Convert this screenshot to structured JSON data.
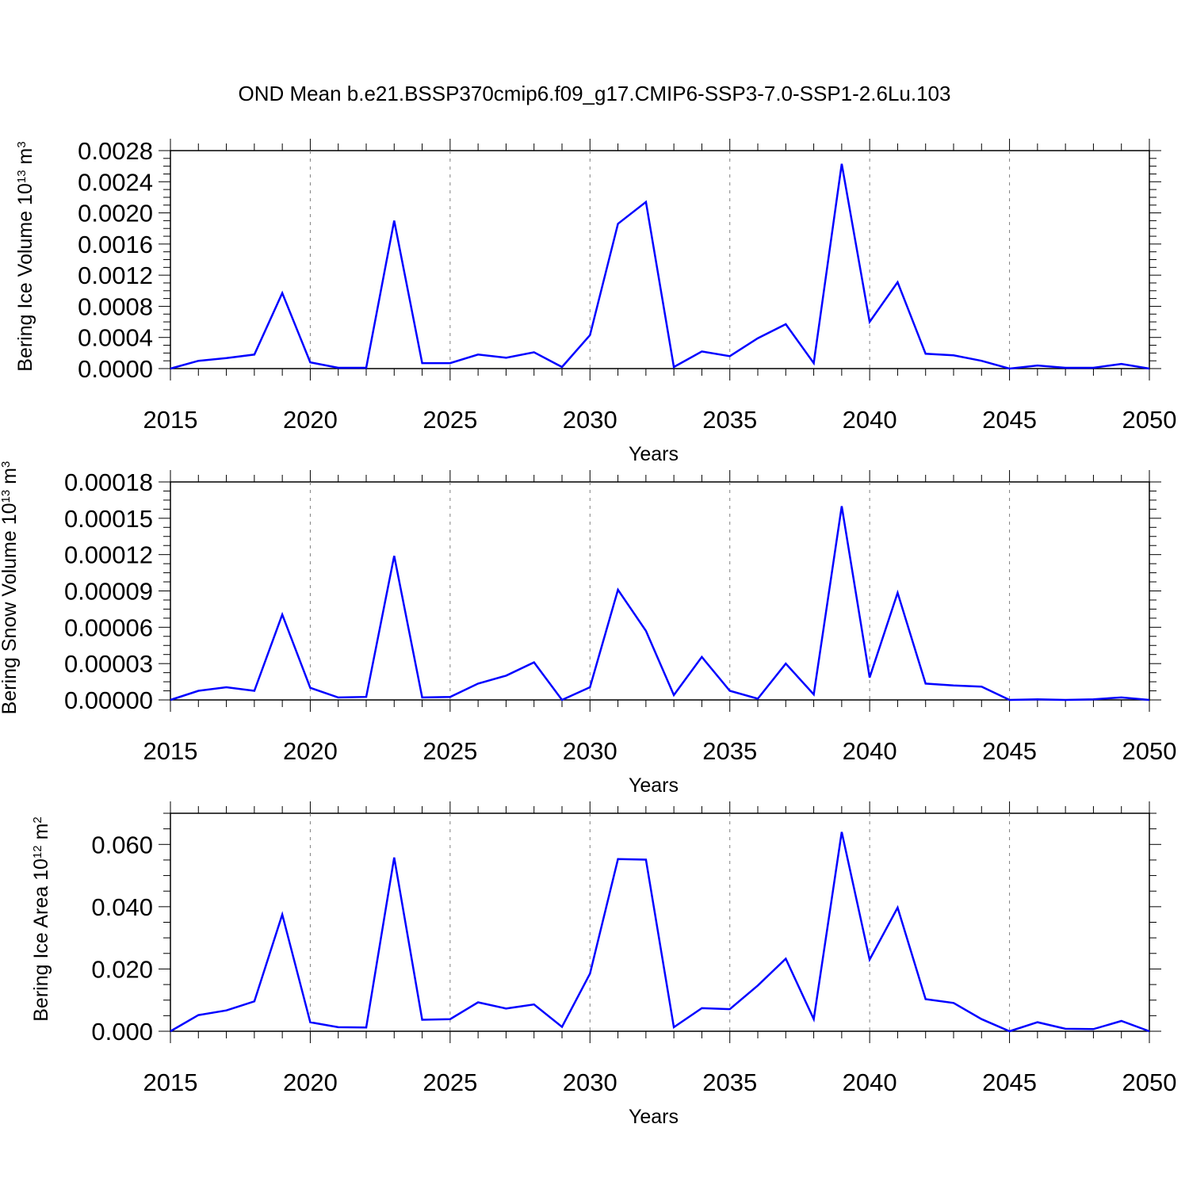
{
  "title": "OND Mean b.e21.BSSP370cmip6.f09_g17.CMIP6-SSP3-7.0-SSP1-2.6Lu.103",
  "line_color": "#0000ff",
  "chart_data": [
    {
      "type": "line",
      "xlabel": "Years",
      "ylabel": {
        "text": "Bering Ice Volume 10",
        "sup1": "13",
        "mid": " m",
        "sup2": "3"
      },
      "xlim": [
        2015,
        2050
      ],
      "ylim": [
        0,
        0.0028
      ],
      "xticks": [
        "2015",
        "2020",
        "2025",
        "2030",
        "2035",
        "2040",
        "2045",
        "2050"
      ],
      "yticks": [
        "0.0000",
        "0.0004",
        "0.0008",
        "0.0012",
        "0.0016",
        "0.0020",
        "0.0024",
        "0.0028"
      ],
      "grid": "x-dashed",
      "x": [
        2015,
        2016,
        2017,
        2018,
        2019,
        2020,
        2021,
        2022,
        2023,
        2024,
        2025,
        2026,
        2027,
        2028,
        2029,
        2030,
        2031,
        2032,
        2033,
        2034,
        2035,
        2036,
        2037,
        2038,
        2039,
        2040,
        2041,
        2042,
        2043,
        2044,
        2045,
        2046,
        2047,
        2048,
        2049,
        2050
      ],
      "y": [
        0.0,
        0.0001,
        0.000135,
        0.00018,
        0.00097,
        8e-05,
        1e-05,
        1e-05,
        0.0019,
        7e-05,
        7e-05,
        0.00018,
        0.00014,
        0.00021,
        2e-05,
        0.00043,
        0.00186,
        0.00214,
        2e-05,
        0.00022,
        0.00016,
        0.00039,
        0.00057,
        7e-05,
        0.00263,
        0.0006,
        0.00111,
        0.00019,
        0.00017,
        0.0001,
        0.0,
        4e-05,
        1e-05,
        1e-05,
        6e-05,
        0.0
      ]
    },
    {
      "type": "line",
      "xlabel": "Years",
      "ylabel": {
        "text": "Bering Snow Volume 10",
        "sup1": "13",
        "mid": " m",
        "sup2": "3"
      },
      "xlim": [
        2015,
        2050
      ],
      "ylim": [
        0,
        0.00018
      ],
      "xticks": [
        "2015",
        "2020",
        "2025",
        "2030",
        "2035",
        "2040",
        "2045",
        "2050"
      ],
      "yticks": [
        "0.00000",
        "0.00003",
        "0.00006",
        "0.00009",
        "0.00012",
        "0.00015",
        "0.00018"
      ],
      "grid": "x-dashed",
      "x": [
        2015,
        2016,
        2017,
        2018,
        2019,
        2020,
        2021,
        2022,
        2023,
        2024,
        2025,
        2026,
        2027,
        2028,
        2029,
        2030,
        2031,
        2032,
        2033,
        2034,
        2035,
        2036,
        2037,
        2038,
        2039,
        2040,
        2041,
        2042,
        2043,
        2044,
        2045,
        2046,
        2047,
        2048,
        2049,
        2050
      ],
      "y": [
        0.0,
        7.5e-06,
        1.05e-05,
        7.5e-06,
        7.05e-05,
        1e-05,
        2e-06,
        2.5e-06,
        0.000119,
        2e-06,
        2.5e-06,
        1.35e-05,
        2e-05,
        3.1e-05,
        0.0,
        1.05e-05,
        9.1e-05,
        5.7e-05,
        4e-06,
        3.55e-05,
        7.5e-06,
        1e-06,
        3e-05,
        4.5e-06,
        0.00016,
        1.85e-05,
        8.85e-05,
        1.35e-05,
        1.2e-05,
        1.1e-05,
        0.0,
        5e-07,
        0.0,
        5e-07,
        2e-06,
        0.0
      ]
    },
    {
      "type": "line",
      "xlabel": "Years",
      "ylabel": {
        "text": "Bering Ice Area 10",
        "sup1": "12",
        "mid": " m",
        "sup2": "2"
      },
      "xlim": [
        2015,
        2050
      ],
      "ylim": [
        0,
        0.07
      ],
      "xticks": [
        "2015",
        "2020",
        "2025",
        "2030",
        "2035",
        "2040",
        "2045",
        "2050"
      ],
      "yticks": [
        "0.000",
        "0.020",
        "0.040",
        "0.060"
      ],
      "grid": "x-dashed",
      "x": [
        2015,
        2016,
        2017,
        2018,
        2019,
        2020,
        2021,
        2022,
        2023,
        2024,
        2025,
        2026,
        2027,
        2028,
        2029,
        2030,
        2031,
        2032,
        2033,
        2034,
        2035,
        2036,
        2037,
        2038,
        2039,
        2040,
        2041,
        2042,
        2043,
        2044,
        2045,
        2046,
        2047,
        2048,
        2049,
        2050
      ],
      "y": [
        0.0,
        0.0052,
        0.0067,
        0.0096,
        0.0375,
        0.0029,
        0.0013,
        0.0012,
        0.0558,
        0.0037,
        0.0039,
        0.0093,
        0.0073,
        0.0086,
        0.0014,
        0.0185,
        0.0553,
        0.0551,
        0.0013,
        0.0074,
        0.0071,
        0.0147,
        0.0233,
        0.0039,
        0.064,
        0.023,
        0.0397,
        0.0103,
        0.0091,
        0.0039,
        0.0,
        0.0029,
        0.0008,
        0.0007,
        0.0033,
        0.0
      ]
    }
  ]
}
